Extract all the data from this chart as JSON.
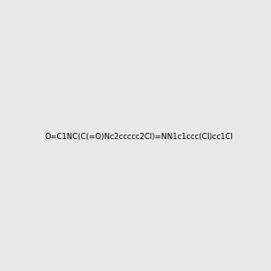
{
  "smiles": "O=C1NC(C(=O)Nc2ccccc2Cl)=NN1c1ccc(Cl)cc1Cl",
  "image_size": 300,
  "background_color": "#e8e8e8",
  "atom_colors": {
    "N": "#0000ff",
    "O": "#ff0000",
    "Cl": "#00aa00"
  },
  "title": ""
}
